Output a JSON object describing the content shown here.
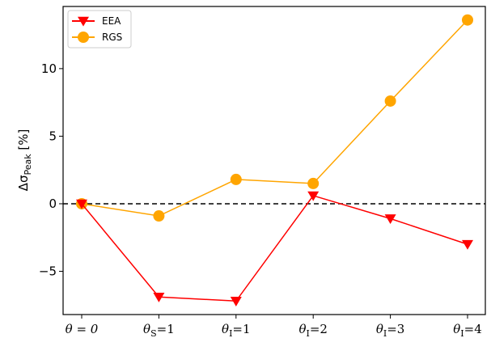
{
  "chart_data": {
    "type": "line",
    "categories": [
      "θ = 0",
      "θS=1",
      "θI=1",
      "θI=2",
      "θI=3",
      "θI=4"
    ],
    "category_parts": [
      {
        "base": "θ = 0",
        "sub": "",
        "tail": ""
      },
      {
        "base": "θ",
        "sub": "S",
        "tail": "=1"
      },
      {
        "base": "θ",
        "sub": "I",
        "tail": "=1"
      },
      {
        "base": "θ",
        "sub": "I",
        "tail": "=2"
      },
      {
        "base": "θ",
        "sub": "I",
        "tail": "=3"
      },
      {
        "base": "θ",
        "sub": "I",
        "tail": "=4"
      }
    ],
    "series": [
      {
        "name": "EEA",
        "color": "#ff0000",
        "marker": "triangle-down",
        "values": [
          0,
          -6.9,
          -7.2,
          0.6,
          -1.1,
          -3.0
        ]
      },
      {
        "name": "RGS",
        "color": "#ffa500",
        "marker": "circle",
        "values": [
          0,
          -0.9,
          1.8,
          1.5,
          7.6,
          13.6
        ]
      }
    ],
    "ylabel": "ΔσPeak [%]",
    "ylabel_parts": {
      "base": "Δσ",
      "sub": "Peak",
      "tail": " [%]"
    },
    "ylim": [
      -8.2,
      14.6
    ],
    "yticks": [
      -5,
      0,
      5,
      10
    ],
    "ytick_labels": [
      "−5",
      "0",
      "5",
      "10"
    ],
    "reference_line": {
      "y": 0,
      "style": "dashed",
      "color": "#000000"
    },
    "legend_position": "top-left",
    "grid": false
  }
}
